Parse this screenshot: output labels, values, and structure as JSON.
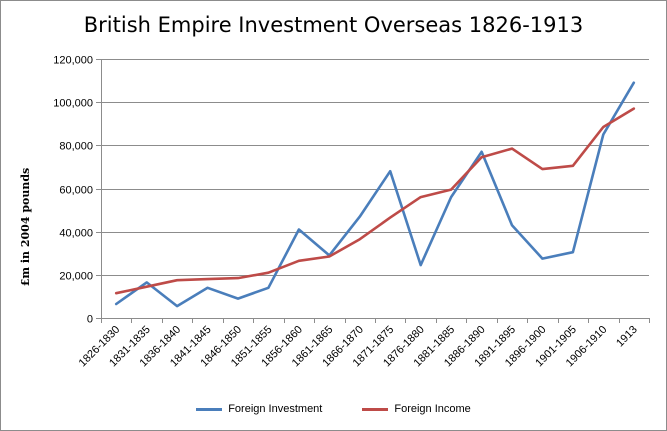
{
  "chart_data": {
    "type": "line",
    "title": "British Empire Investment Overseas 1826-1913",
    "ylabel": "£m in 2004 pounds",
    "xlabel": "",
    "ylim": [
      0,
      120000
    ],
    "ytick_step": 20000,
    "ytick_labels": [
      "0",
      "20,000",
      "40,000",
      "60,000",
      "80,000",
      "100,000",
      "120,000"
    ],
    "grid": true,
    "legend_position": "bottom",
    "categories": [
      "1826-1830",
      "1831-1835",
      "1836-1840",
      "1841-1845",
      "1846-1850",
      "1851-1855",
      "1856-1860",
      "1861-1865",
      "1866-1870",
      "1871-1875",
      "1876-1880",
      "1881-1885",
      "1886-1890",
      "1891-1895",
      "1896-1900",
      "1901-1905",
      "1906-1910",
      "1913"
    ],
    "series": [
      {
        "name": "Foreign Investment",
        "color": "#4a7ebb",
        "values": [
          6500,
          16500,
          5500,
          14000,
          9000,
          14000,
          41000,
          29000,
          47000,
          68000,
          24500,
          56000,
          77000,
          43000,
          27500,
          30500,
          85000,
          109000
        ]
      },
      {
        "name": "Foreign Income",
        "color": "#be4b48",
        "values": [
          11500,
          14500,
          17500,
          18000,
          18500,
          21000,
          26500,
          28500,
          36500,
          46500,
          56000,
          59500,
          74500,
          78500,
          69000,
          70500,
          88500,
          97000
        ]
      }
    ]
  }
}
